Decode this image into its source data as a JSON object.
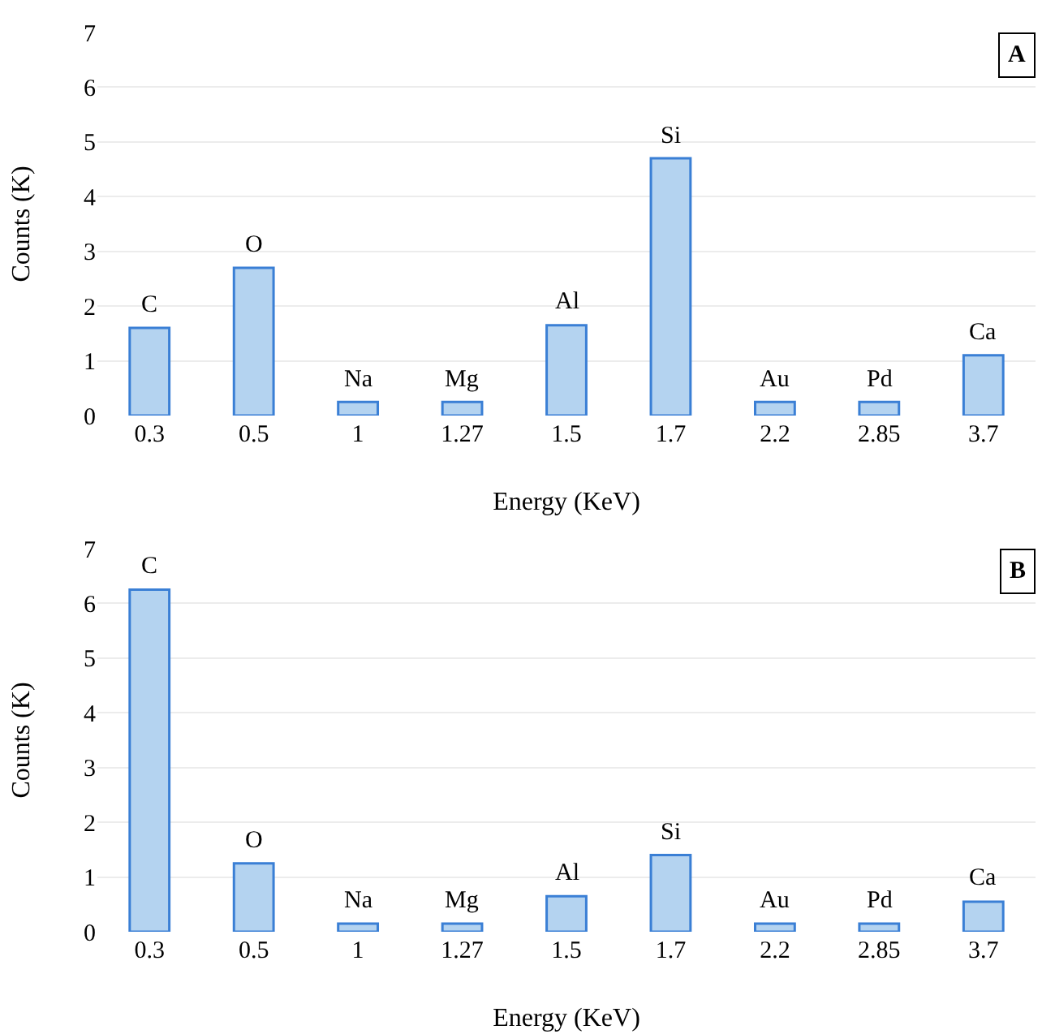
{
  "chart_data": [
    {
      "type": "bar",
      "title": "A",
      "xlabel": "Energy (KeV)",
      "ylabel": "Counts (K)",
      "categories": [
        "0.3",
        "0.5",
        "1",
        "1.27",
        "1.5",
        "1.7",
        "2.2",
        "2.85",
        "3.7"
      ],
      "series": [
        {
          "color": "#b4d3f0",
          "values": [
            1.6,
            2.7,
            0.25,
            0.25,
            1.65,
            4.7,
            0.25,
            0.25,
            1.1
          ]
        }
      ],
      "ylim": [
        0,
        7
      ],
      "yticks": [
        0,
        1,
        2,
        3,
        4,
        5,
        6,
        7
      ],
      "grid": "y",
      "annotations": [
        {
          "text": "C",
          "x": "0.3",
          "y": 1.6
        },
        {
          "text": "O",
          "x": "0.5",
          "y": 2.7
        },
        {
          "text": "Na",
          "x": "1",
          "y": 0.25
        },
        {
          "text": "Mg",
          "x": "1.27",
          "y": 0.25
        },
        {
          "text": "Al",
          "x": "1.5",
          "y": 1.65
        },
        {
          "text": "Si",
          "x": "1.7",
          "y": 4.7
        },
        {
          "text": "Au",
          "x": "2.2",
          "y": 0.25
        },
        {
          "text": "Pd",
          "x": "2.85",
          "y": 0.25
        },
        {
          "text": "Ca",
          "x": "3.7",
          "y": 1.1
        }
      ]
    },
    {
      "type": "bar",
      "title": "B",
      "xlabel": "Energy (KeV)",
      "ylabel": "Counts (K)",
      "categories": [
        "0.3",
        "0.5",
        "1",
        "1.27",
        "1.5",
        "1.7",
        "2.2",
        "2.85",
        "3.7"
      ],
      "series": [
        {
          "color": "#b4d3f0",
          "values": [
            6.25,
            1.25,
            0.15,
            0.15,
            0.65,
            1.4,
            0.15,
            0.15,
            0.55
          ]
        }
      ],
      "ylim": [
        0,
        7
      ],
      "yticks": [
        0,
        1,
        2,
        3,
        4,
        5,
        6,
        7
      ],
      "grid": "y",
      "annotations": [
        {
          "text": "C",
          "x": "0.3",
          "y": 6.25
        },
        {
          "text": "O",
          "x": "0.5",
          "y": 1.25
        },
        {
          "text": "Na",
          "x": "1",
          "y": 0.15
        },
        {
          "text": "Mg",
          "x": "1.27",
          "y": 0.15
        },
        {
          "text": "Al",
          "x": "1.5",
          "y": 0.65
        },
        {
          "text": "Si",
          "x": "1.7",
          "y": 1.4
        },
        {
          "text": "Au",
          "x": "2.2",
          "y": 0.15
        },
        {
          "text": "Pd",
          "x": "2.85",
          "y": 0.15
        },
        {
          "text": "Ca",
          "x": "3.7",
          "y": 0.55
        }
      ]
    }
  ]
}
